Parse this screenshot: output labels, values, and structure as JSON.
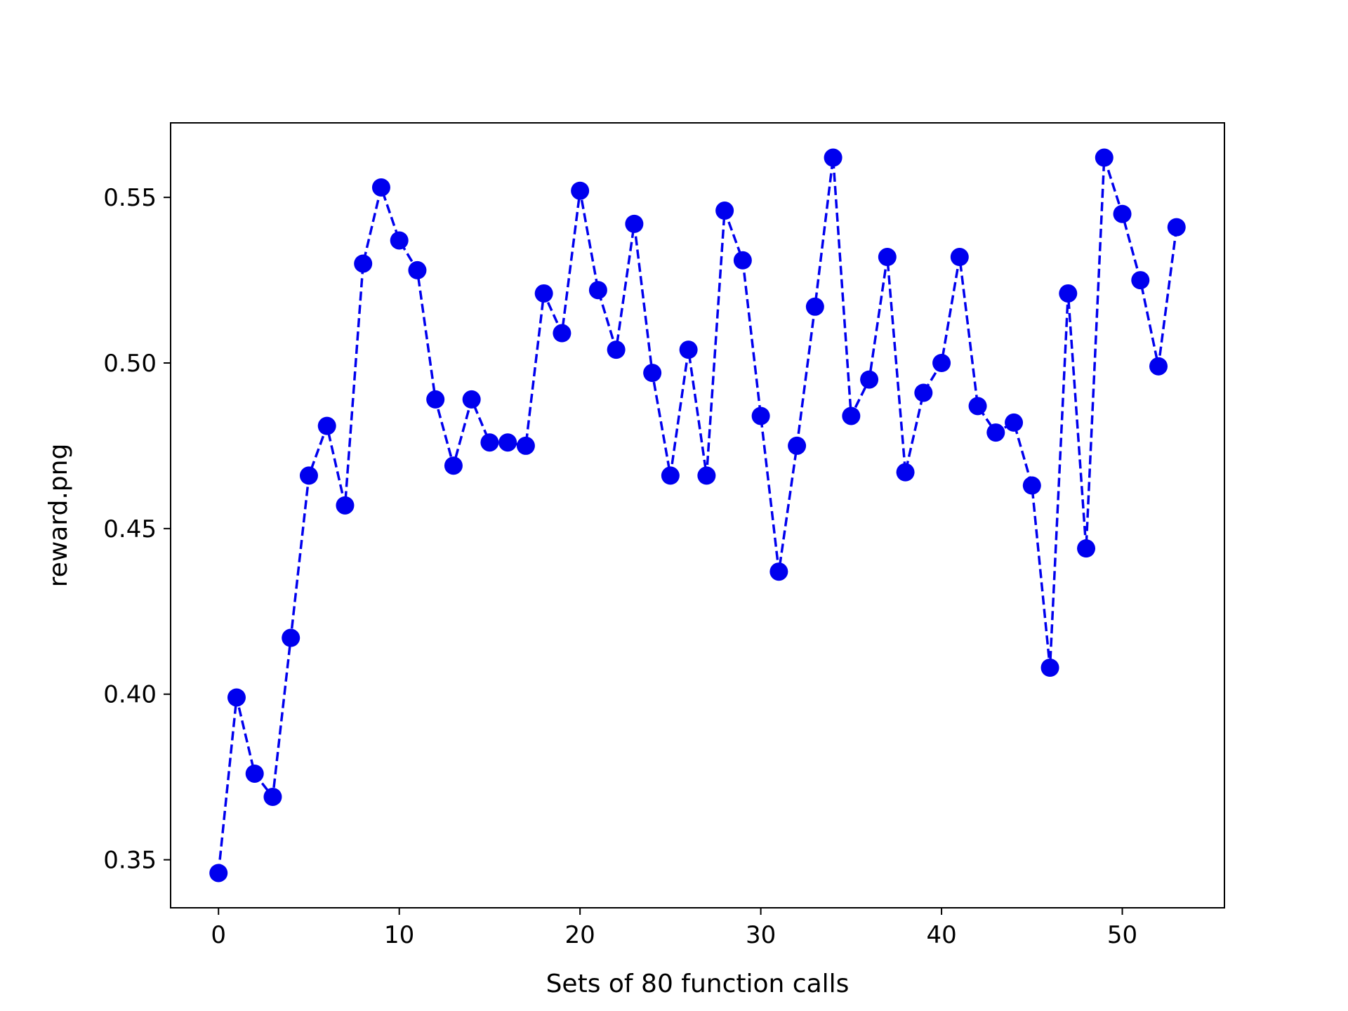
{
  "chart_data": {
    "type": "line",
    "title": "",
    "xlabel": "Sets of 80 function calls",
    "ylabel": "reward.png",
    "xlim": [
      -2.65,
      55.65
    ],
    "ylim": [
      0.3355,
      0.5725
    ],
    "xticks": [
      0,
      10,
      20,
      30,
      40,
      50
    ],
    "xtick_labels": [
      "0",
      "10",
      "20",
      "30",
      "40",
      "50"
    ],
    "yticks": [
      0.35,
      0.4,
      0.45,
      0.5,
      0.55
    ],
    "ytick_labels": [
      "0.35",
      "0.40",
      "0.45",
      "0.50",
      "0.55"
    ],
    "grid": false,
    "legend": "none",
    "line_style": "dashed",
    "marker": "circle",
    "color": "#0000ee",
    "series": [
      {
        "x": [
          0,
          1,
          2,
          3,
          4,
          5,
          6,
          7,
          8,
          9,
          10,
          11,
          12,
          13,
          14,
          15,
          16,
          17,
          18,
          19,
          20,
          21,
          22,
          23,
          24,
          25,
          26,
          27,
          28,
          29,
          30,
          31,
          32,
          33,
          34,
          35,
          36,
          37,
          38,
          39,
          40,
          41,
          42,
          43,
          44,
          45,
          46,
          47,
          48,
          49,
          50,
          51,
          52,
          53
        ],
        "values": [
          0.346,
          0.399,
          0.376,
          0.369,
          0.417,
          0.466,
          0.481,
          0.457,
          0.53,
          0.553,
          0.537,
          0.528,
          0.489,
          0.469,
          0.489,
          0.476,
          0.476,
          0.475,
          0.521,
          0.509,
          0.552,
          0.522,
          0.504,
          0.542,
          0.497,
          0.466,
          0.504,
          0.466,
          0.546,
          0.531,
          0.484,
          0.437,
          0.475,
          0.517,
          0.562,
          0.484,
          0.495,
          0.532,
          0.467,
          0.491,
          0.5,
          0.532,
          0.487,
          0.479,
          0.482,
          0.463,
          0.408,
          0.521,
          0.444,
          0.562,
          0.545,
          0.525,
          0.499,
          0.541
        ]
      }
    ]
  }
}
